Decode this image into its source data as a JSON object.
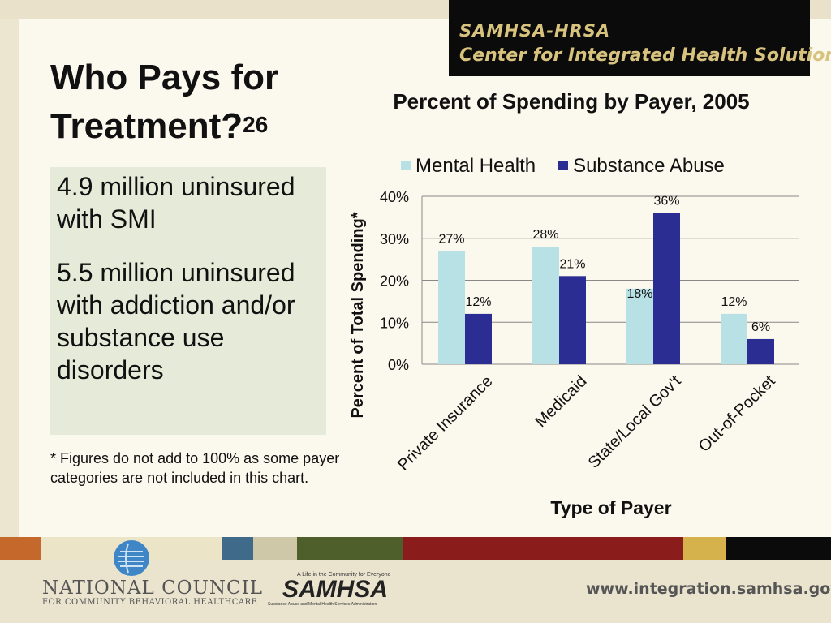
{
  "header": {
    "line1": "SAMHSA-HRSA",
    "line2": "Center for Integrated Health Solutions"
  },
  "title": {
    "text": "Who Pays for Treatment?",
    "superscript": "26"
  },
  "bullets": [
    "4.9 million uninsured with SMI",
    "5.5 million uninsured with addiction and/or substance use disorders"
  ],
  "footnote": "* Figures do not add to 100% as some payer categories are not included in this chart.",
  "chart_data": {
    "type": "bar",
    "title": "Percent of Spending by Payer, 2005",
    "xlabel": "Type of Payer",
    "ylabel": "Percent of Total Spending*",
    "categories": [
      "Private Insurance",
      "Medicaid",
      "State/Local Gov't",
      "Out-of-Pocket"
    ],
    "series": [
      {
        "name": "Mental Health",
        "values": [
          27,
          28,
          18,
          12
        ],
        "color": "#b7e1e4"
      },
      {
        "name": "Substance Abuse",
        "values": [
          12,
          21,
          36,
          6
        ],
        "color": "#2b2d92"
      }
    ],
    "ylim": [
      0,
      40
    ],
    "yticks": [
      0,
      10,
      20,
      30,
      40
    ],
    "ytick_labels": [
      "0%",
      "10%",
      "20%",
      "30%",
      "40%"
    ],
    "data_labels": [
      [
        "27%",
        "28%",
        "18%",
        "12%"
      ],
      [
        "12%",
        "21%",
        "36%",
        "6%"
      ]
    ],
    "grid": true,
    "legend_position": "top"
  },
  "footer": {
    "org_line1": "NATIONAL COUNCIL",
    "org_line2": "FOR COMMUNITY BEHAVIORAL HEALTHCARE",
    "samhsa_tagline": "A Life in the Community for Everyone",
    "samhsa_logo": "SAMHSA",
    "samhsa_subtitle": "Substance Abuse and Mental Health Services Administration",
    "url": "www.integration.samhsa.gov"
  },
  "colors": {
    "band": [
      "#c5682c",
      "#ece4c7",
      "#3f6a8a",
      "#cfc8a8",
      "#4e5f2c",
      "#8a1c1c",
      "#d6b24c",
      "#0b0b0b"
    ]
  }
}
